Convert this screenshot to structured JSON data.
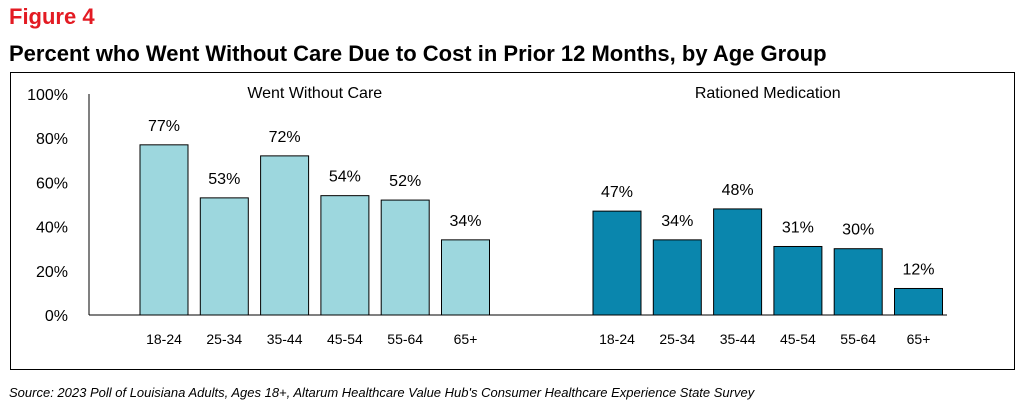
{
  "figure_label": "Figure 4",
  "title": "Percent who Went Without Care Due to Cost in Prior 12 Months, by Age Group",
  "source": "Source: 2023 Poll of Louisiana Adults, Ages 18+, Altarum Healthcare Value Hub's Consumer Healthcare Experience State Survey",
  "chart_data": {
    "type": "bar",
    "title": "Percent who Went Without Care Due to Cost in Prior 12 Months, by Age Group",
    "ylabel": "",
    "xlabel": "",
    "ylim": [
      0,
      100
    ],
    "yticks": [
      "0%",
      "20%",
      "40%",
      "60%",
      "80%",
      "100%"
    ],
    "categories": [
      "18-24",
      "25-34",
      "35-44",
      "45-54",
      "55-64",
      "65+"
    ],
    "series": [
      {
        "name": "Went Without Care",
        "color": "#9dd7de",
        "values": [
          77,
          53,
          72,
          54,
          52,
          34
        ],
        "labels": [
          "77%",
          "53%",
          "72%",
          "54%",
          "52%",
          "34%"
        ]
      },
      {
        "name": "Rationed Medication",
        "color": "#0a86ad",
        "values": [
          47,
          34,
          48,
          31,
          30,
          12
        ],
        "labels": [
          "47%",
          "34%",
          "48%",
          "31%",
          "30%",
          "12%"
        ]
      }
    ]
  }
}
